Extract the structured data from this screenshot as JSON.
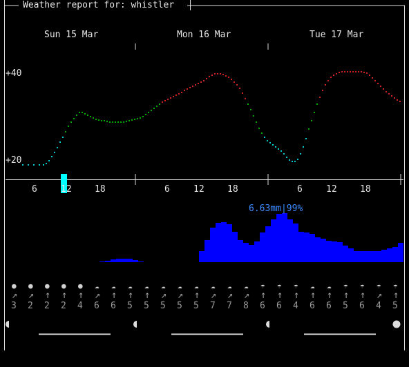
{
  "title": "Weather report for: whistler",
  "days": [
    "Sun 15 Mar",
    "Mon 16 Mar",
    "Tue 17 Mar"
  ],
  "temp_axis": {
    "top": "+40",
    "bottom": "+20"
  },
  "hour_labels": [
    "6",
    "12",
    "18",
    "6",
    "12",
    "18",
    "6",
    "12",
    "18"
  ],
  "rain_peak_label": "6.63mm|99%",
  "weather_icons": [
    "moon",
    "moon",
    "moon",
    "moon",
    "moon",
    "cloud-moon",
    "cloud-moon",
    "cloud-moon",
    "cloud-moon",
    "cloud-moon",
    "cloud-moon",
    "cloud-moon",
    "cloud-sun",
    "cloud-sun",
    "cloud-sun",
    "cloud-rain",
    "cloud-rain",
    "cloud-rain",
    "cloud-sun",
    "cloud-sun",
    "cloud-rain",
    "cloud-rain",
    "cloud-rain",
    "cloud-rain"
  ],
  "wind_arrows": [
    "↗",
    "↗",
    "↑",
    "↑",
    "↑",
    "↗",
    "↑",
    "↑",
    "↑",
    "↗",
    "↗",
    "↑",
    "↗",
    "↗",
    "↗",
    "↑",
    "↑",
    "↑",
    "↑",
    "↑",
    "↑",
    "↑",
    "↗",
    "↑"
  ],
  "wind_speeds": [
    "3",
    "2",
    "2",
    "2",
    "4",
    "6",
    "6",
    "5",
    "5",
    "5",
    "5",
    "5",
    "7",
    "7",
    "8",
    "6",
    "6",
    "4",
    "6",
    "6",
    "5",
    "6",
    "4",
    "5"
  ],
  "colors": {
    "rain": "#0000ff",
    "rain_label": "#3a8cff",
    "cold": "#00cccc",
    "mild": "#00aa00",
    "warm": "#cc2222",
    "now_marker": "#00ffff"
  }
}
